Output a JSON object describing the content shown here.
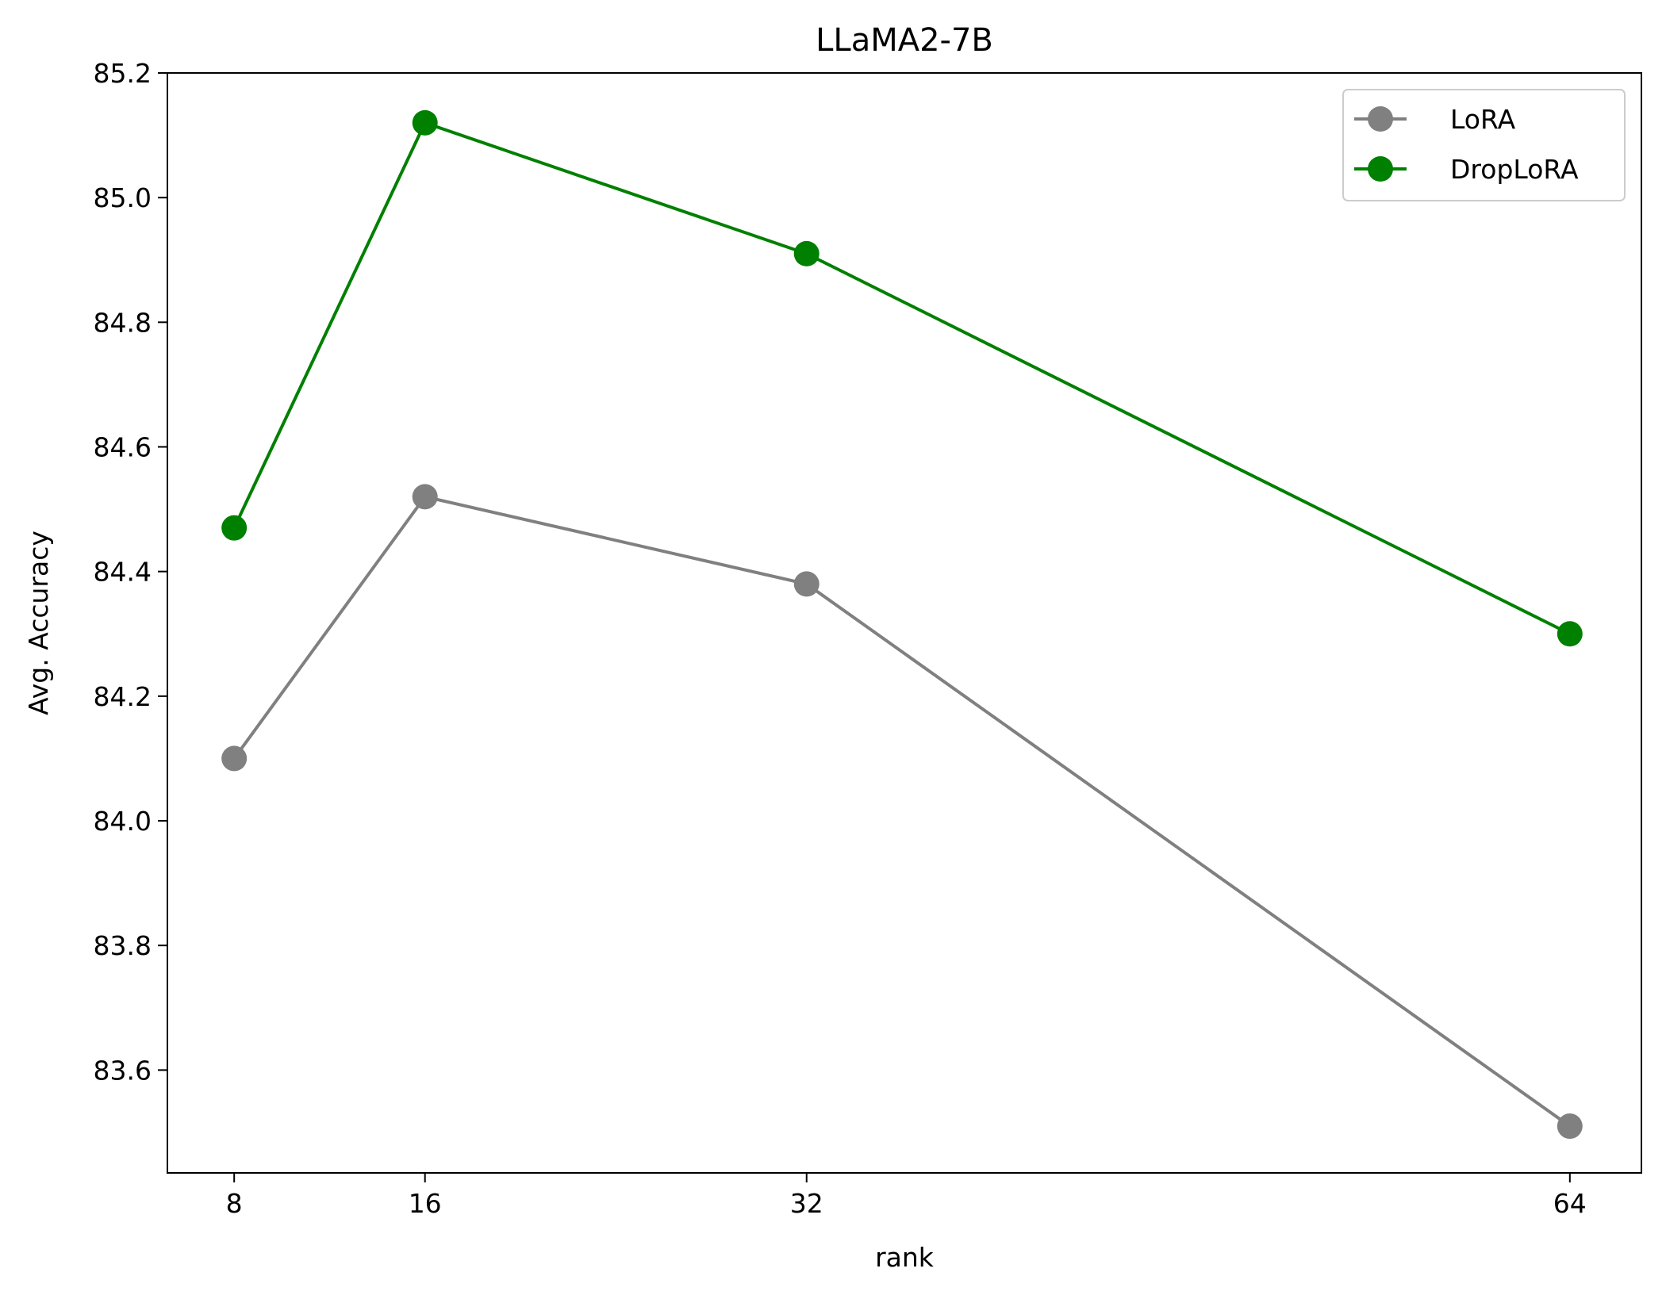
{
  "chart_data": {
    "type": "line",
    "title": "LLaMA2-7B",
    "xlabel": "rank",
    "ylabel": "Avg. Accuracy",
    "x": [
      8,
      16,
      32,
      64
    ],
    "x_tick_labels": [
      "8",
      "16",
      "32",
      "64"
    ],
    "y_tick_values": [
      83.6,
      83.8,
      84.0,
      84.2,
      84.4,
      84.6,
      84.8,
      85.0,
      85.2
    ],
    "y_tick_labels": [
      "83.6",
      "83.8",
      "84.0",
      "84.2",
      "84.4",
      "84.6",
      "84.8",
      "85.0",
      "85.2"
    ],
    "xlim": [
      5.2,
      67.0
    ],
    "ylim": [
      83.435,
      85.2
    ],
    "grid": false,
    "legend_position": "top-right",
    "series": [
      {
        "name": "LoRA",
        "color": "#808080",
        "marker": "circle",
        "values": [
          84.1,
          84.52,
          84.38,
          83.51
        ]
      },
      {
        "name": "DropLoRA",
        "color": "#008000",
        "marker": "circle",
        "values": [
          84.47,
          85.12,
          84.91,
          84.3
        ]
      }
    ]
  }
}
